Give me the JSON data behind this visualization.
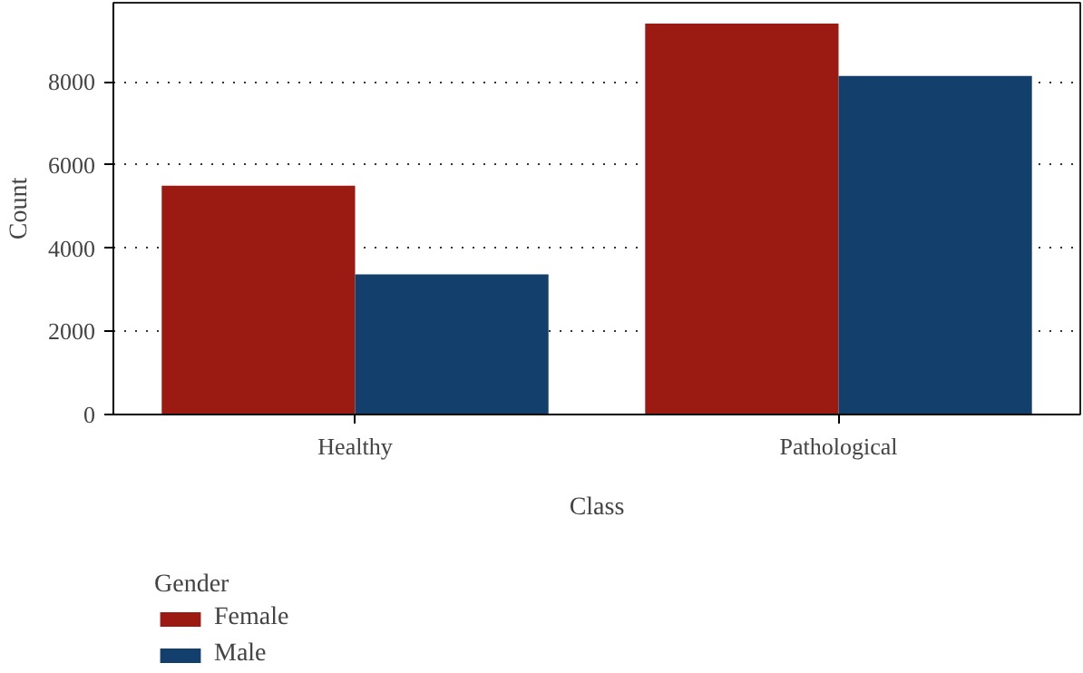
{
  "chart_data": {
    "type": "bar",
    "xlabel": "Class",
    "ylabel": "Count",
    "legend_title": "Gender",
    "categories": [
      "Healthy",
      "Pathological"
    ],
    "series": [
      {
        "name": "Female",
        "color": "#9b1b13",
        "values": [
          5500,
          9400
        ]
      },
      {
        "name": "Male",
        "color": "#123f6b",
        "values": [
          3370,
          8140
        ]
      }
    ],
    "ylim": [
      0,
      9900
    ],
    "yticks": [
      0,
      2000,
      4000,
      6000,
      8000
    ],
    "grid": "y",
    "legend": "bottom left"
  }
}
